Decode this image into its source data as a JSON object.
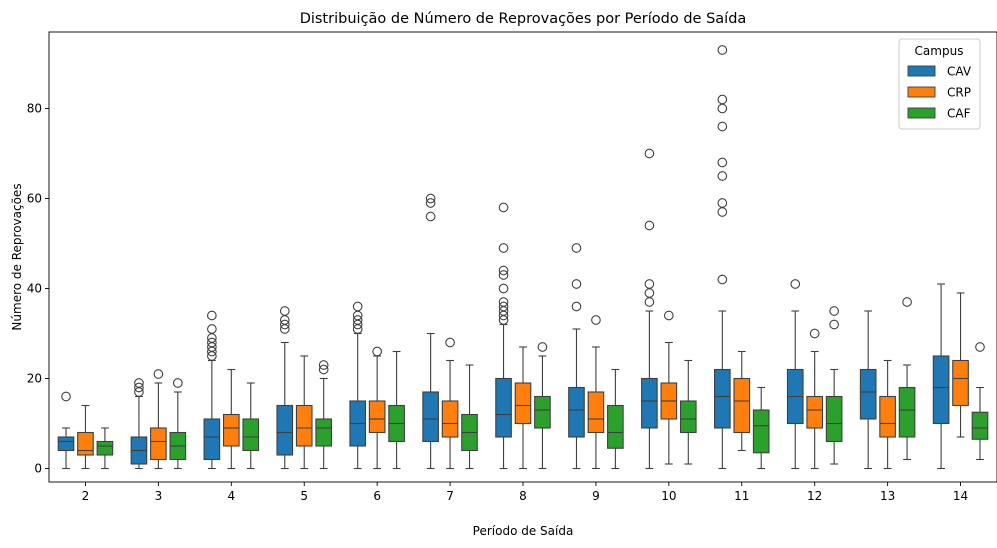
{
  "chart_data": {
    "type": "box",
    "title": "Distribuição de Número de Reprovações por Período de Saída",
    "xlabel": "Período de Saída",
    "ylabel": "Número de Reprovações",
    "categories": [
      "2",
      "3",
      "4",
      "5",
      "6",
      "7",
      "8",
      "9",
      "10",
      "11",
      "12",
      "13",
      "14"
    ],
    "ylim": [
      -3,
      97
    ],
    "yticks": [
      0,
      20,
      40,
      60,
      80
    ],
    "grid": false,
    "legend": {
      "title": "Campus",
      "placement": "top-right"
    },
    "series": [
      {
        "name": "CAV",
        "color": "#1f77b4",
        "boxes": [
          {
            "whislo": 0,
            "q1": 4,
            "med": 6,
            "q3": 7,
            "whishi": 9,
            "fliers": [
              16
            ]
          },
          {
            "whislo": 0,
            "q1": 1,
            "med": 4,
            "q3": 7,
            "whishi": 16,
            "fliers": [
              17,
              18,
              19
            ]
          },
          {
            "whislo": 0,
            "q1": 2,
            "med": 7,
            "q3": 11,
            "whishi": 24,
            "fliers": [
              25,
              26,
              27,
              28,
              29,
              31,
              34
            ]
          },
          {
            "whislo": 0,
            "q1": 3,
            "med": 8,
            "q3": 14,
            "whishi": 28,
            "fliers": [
              31,
              32,
              33,
              35
            ]
          },
          {
            "whislo": 0,
            "q1": 5,
            "med": 10,
            "q3": 15,
            "whishi": 30,
            "fliers": [
              31,
              32,
              33,
              34,
              36
            ]
          },
          {
            "whislo": 0,
            "q1": 6,
            "med": 11,
            "q3": 17,
            "whishi": 30,
            "fliers": [
              56,
              59,
              60
            ]
          },
          {
            "whislo": 0,
            "q1": 7,
            "med": 12,
            "q3": 20,
            "whishi": 32,
            "fliers": [
              33,
              34,
              35,
              36,
              37,
              40,
              43,
              44,
              49,
              58
            ]
          },
          {
            "whislo": 0,
            "q1": 7,
            "med": 13,
            "q3": 18,
            "whishi": 31,
            "fliers": [
              36,
              41,
              49
            ]
          },
          {
            "whislo": 0,
            "q1": 9,
            "med": 15,
            "q3": 20,
            "whishi": 35,
            "fliers": [
              37,
              39,
              41,
              54,
              70
            ]
          },
          {
            "whislo": 0,
            "q1": 9,
            "med": 16,
            "q3": 22,
            "whishi": 35,
            "fliers": [
              42,
              57,
              59,
              65,
              68,
              76,
              80,
              82,
              93
            ]
          },
          {
            "whislo": 0,
            "q1": 10,
            "med": 16,
            "q3": 22,
            "whishi": 35,
            "fliers": [
              41
            ]
          },
          {
            "whislo": 0,
            "q1": 11,
            "med": 17,
            "q3": 22,
            "whishi": 35,
            "fliers": []
          },
          {
            "whislo": 0,
            "q1": 10,
            "med": 18,
            "q3": 25,
            "whishi": 41,
            "fliers": []
          }
        ]
      },
      {
        "name": "CRP",
        "color": "#ff7f0e",
        "boxes": [
          {
            "whislo": 0,
            "q1": 3,
            "med": 4,
            "q3": 8,
            "whishi": 14,
            "fliers": []
          },
          {
            "whislo": 0,
            "q1": 2,
            "med": 6,
            "q3": 9,
            "whishi": 19,
            "fliers": [
              21
            ]
          },
          {
            "whislo": 0,
            "q1": 5,
            "med": 9,
            "q3": 12,
            "whishi": 22,
            "fliers": []
          },
          {
            "whislo": 0,
            "q1": 5,
            "med": 9,
            "q3": 14,
            "whishi": 25,
            "fliers": []
          },
          {
            "whislo": 0,
            "q1": 8,
            "med": 11,
            "q3": 15,
            "whishi": 25,
            "fliers": [
              26
            ]
          },
          {
            "whislo": 0,
            "q1": 7,
            "med": 10,
            "q3": 15,
            "whishi": 24,
            "fliers": [
              28
            ]
          },
          {
            "whislo": 0,
            "q1": 10,
            "med": 14,
            "q3": 19,
            "whishi": 27,
            "fliers": []
          },
          {
            "whislo": 0,
            "q1": 8,
            "med": 11,
            "q3": 17,
            "whishi": 27,
            "fliers": [
              33
            ]
          },
          {
            "whislo": 1,
            "q1": 11,
            "med": 15,
            "q3": 19,
            "whishi": 28,
            "fliers": [
              34
            ]
          },
          {
            "whislo": 4,
            "q1": 8,
            "med": 15,
            "q3": 20,
            "whishi": 26,
            "fliers": []
          },
          {
            "whislo": 0,
            "q1": 9,
            "med": 13,
            "q3": 16,
            "whishi": 26,
            "fliers": [
              30
            ]
          },
          {
            "whislo": 0,
            "q1": 7,
            "med": 10,
            "q3": 16,
            "whishi": 24,
            "fliers": []
          },
          {
            "whislo": 7,
            "q1": 14,
            "med": 20,
            "q3": 24,
            "whishi": 39,
            "fliers": []
          }
        ]
      },
      {
        "name": "CAF",
        "color": "#2ca02c",
        "boxes": [
          {
            "whislo": 0,
            "q1": 3,
            "med": 5,
            "q3": 6,
            "whishi": 9,
            "fliers": []
          },
          {
            "whislo": 0,
            "q1": 2,
            "med": 5,
            "q3": 8,
            "whishi": 17,
            "fliers": [
              19
            ]
          },
          {
            "whislo": 0,
            "q1": 4,
            "med": 7,
            "q3": 11,
            "whishi": 19,
            "fliers": []
          },
          {
            "whislo": 0,
            "q1": 5,
            "med": 9,
            "q3": 11,
            "whishi": 20,
            "fliers": [
              22,
              23
            ]
          },
          {
            "whislo": 0,
            "q1": 6,
            "med": 10,
            "q3": 14,
            "whishi": 26,
            "fliers": []
          },
          {
            "whislo": 0,
            "q1": 4,
            "med": 8,
            "q3": 12,
            "whishi": 23,
            "fliers": []
          },
          {
            "whislo": 0,
            "q1": 9,
            "med": 13,
            "q3": 16,
            "whishi": 25,
            "fliers": [
              27
            ]
          },
          {
            "whislo": 0,
            "q1": 4.5,
            "med": 8,
            "q3": 14,
            "whishi": 22,
            "fliers": []
          },
          {
            "whislo": 1,
            "q1": 8,
            "med": 11,
            "q3": 15,
            "whishi": 24,
            "fliers": []
          },
          {
            "whislo": 0,
            "q1": 3.5,
            "med": 9.5,
            "q3": 13,
            "whishi": 18,
            "fliers": []
          },
          {
            "whislo": 1,
            "q1": 6,
            "med": 10,
            "q3": 16,
            "whishi": 22,
            "fliers": [
              32,
              35
            ]
          },
          {
            "whislo": 2,
            "q1": 7,
            "med": 13,
            "q3": 18,
            "whishi": 23,
            "fliers": [
              37
            ]
          },
          {
            "whislo": 2,
            "q1": 6.5,
            "med": 9,
            "q3": 12.5,
            "whishi": 18,
            "fliers": [
              27
            ]
          }
        ]
      }
    ]
  }
}
